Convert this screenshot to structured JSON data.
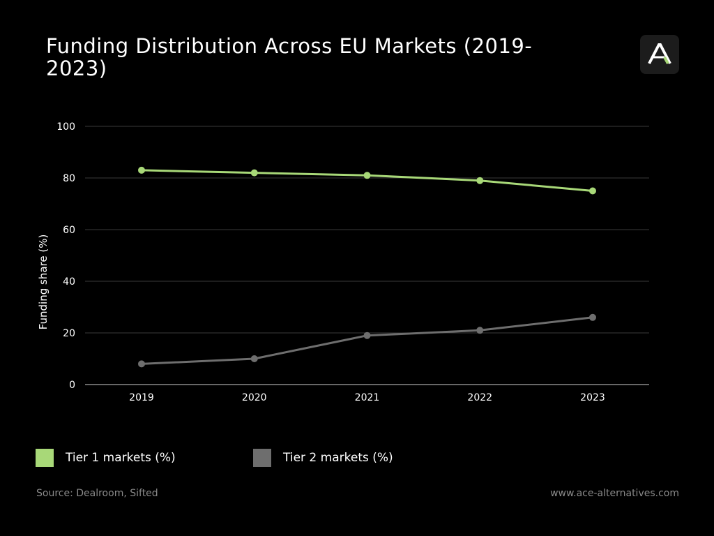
{
  "header": {
    "title": "Funding Distribution Across EU Markets (2019-2023)"
  },
  "logo": {
    "icon": "ace-logo-icon"
  },
  "colors": {
    "background": "#000000",
    "tier1": "#a8d878",
    "tier2": "#6e6e6e",
    "grid": "#3a3a3a",
    "text": "#ffffff",
    "muted": "#8a8a8a"
  },
  "chart_data": {
    "type": "line",
    "title": "Funding Distribution Across EU Markets (2019-2023)",
    "xlabel": "",
    "ylabel": "Funding share (%)",
    "categories": [
      "2019",
      "2020",
      "2021",
      "2022",
      "2023"
    ],
    "ylim": [
      0,
      100
    ],
    "yticks": [
      0,
      20,
      40,
      60,
      80,
      100
    ],
    "grid": true,
    "legend_position": "bottom",
    "series": [
      {
        "name": "Tier 1 markets (%)",
        "values": [
          83,
          82,
          81,
          79,
          75
        ],
        "color": "#a8d878"
      },
      {
        "name": "Tier 2 markets (%)",
        "values": [
          8,
          10,
          19,
          21,
          26
        ],
        "color": "#6e6e6e"
      }
    ]
  },
  "legend": {
    "items": [
      {
        "label": "Tier 1 markets (%)",
        "color": "#a8d878"
      },
      {
        "label": "Tier 2 markets (%)",
        "color": "#6e6e6e"
      }
    ]
  },
  "footer": {
    "source": "Source: Dealroom, Sifted",
    "url": "www.ace-alternatives.com"
  }
}
